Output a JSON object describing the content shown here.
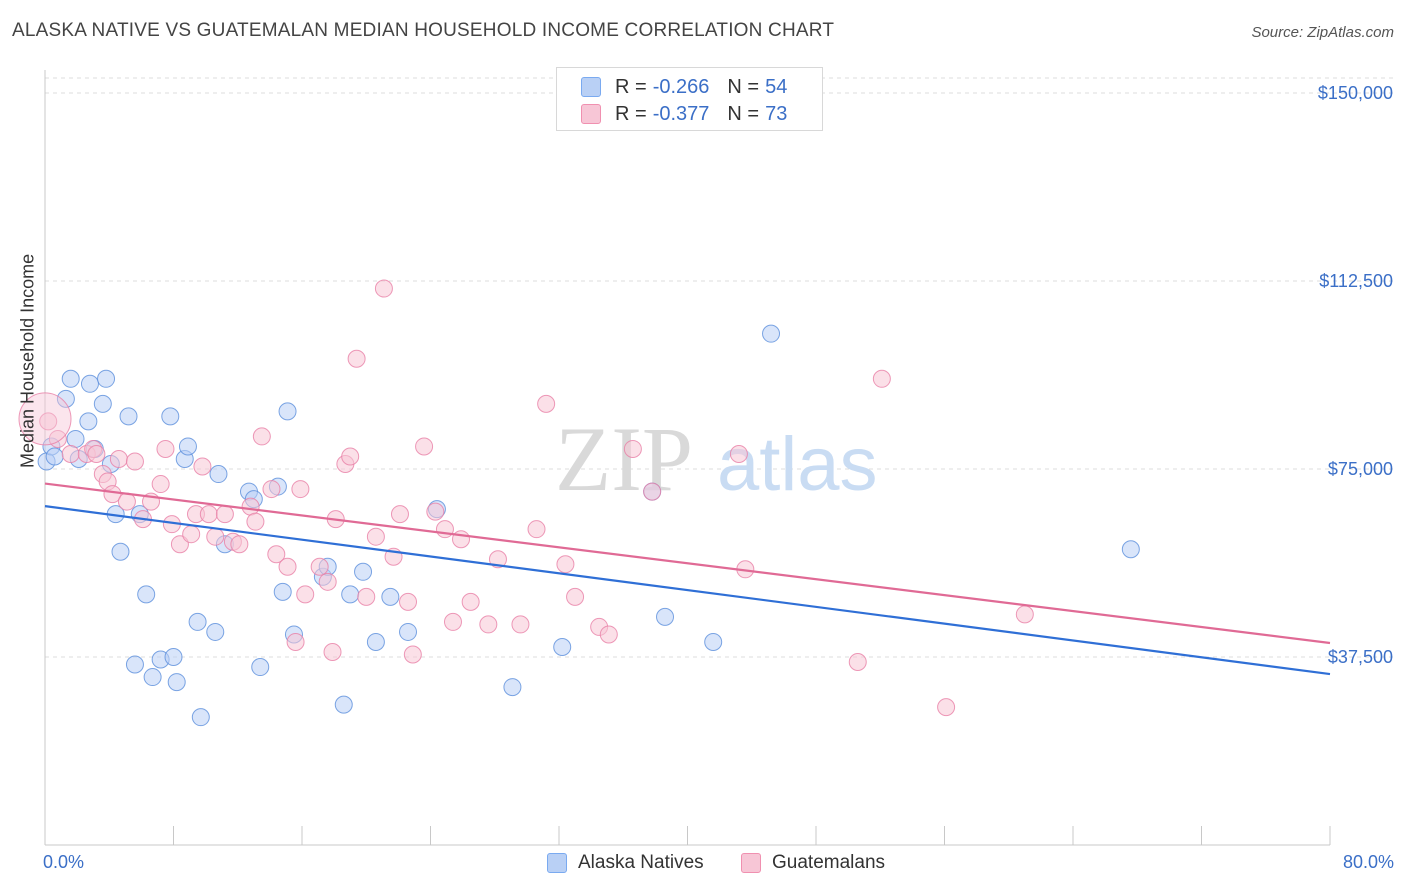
{
  "title": "ALASKA NATIVE VS GUATEMALAN MEDIAN HOUSEHOLD INCOME CORRELATION CHART",
  "source": "Source: ZipAtlas.com",
  "watermark": {
    "zip": "ZIP",
    "atlas": "atlas"
  },
  "legend_top": [
    {
      "r_label": "R =",
      "r_value": "-0.266",
      "n_label": "N =",
      "n_value": "54",
      "color": "#7aaaf0",
      "fill": "#b9d0f5"
    },
    {
      "r_label": "R =",
      "r_value": "-0.377",
      "n_label": "N =",
      "n_value": "73",
      "color": "#f090b0",
      "fill": "#f7c6d6"
    }
  ],
  "chart_data": {
    "type": "scatter",
    "title": "ALASKA NATIVE VS GUATEMALAN MEDIAN HOUSEHOLD INCOME CORRELATION CHART",
    "xlabel": "",
    "ylabel": "Median Household Income",
    "xlim": [
      0,
      80
    ],
    "ylim": [
      0,
      153000
    ],
    "x_tick_labels": [
      "0.0%",
      "80.0%"
    ],
    "y_ticks": [
      37500,
      75000,
      112500,
      150000
    ],
    "y_tick_labels": [
      "$37,500",
      "$75,000",
      "$112,500",
      "$150,000"
    ],
    "grid": "horizontal dashed",
    "legend_position": "top-center and bottom",
    "series": [
      {
        "name": "Alaska Natives",
        "color": "#5b8fdc",
        "fill": "#b9d0f5",
        "trend": {
          "x": [
            0,
            80
          ],
          "y": [
            67600,
            34100
          ]
        },
        "points": [
          [
            0.1,
            76500
          ],
          [
            0.4,
            79500
          ],
          [
            0.6,
            77500
          ],
          [
            1.3,
            89000
          ],
          [
            1.6,
            93000
          ],
          [
            1.9,
            81000
          ],
          [
            2.1,
            77000
          ],
          [
            2.7,
            84500
          ],
          [
            2.8,
            92000
          ],
          [
            3.1,
            79000
          ],
          [
            3.6,
            88000
          ],
          [
            3.8,
            93000
          ],
          [
            4.1,
            76000
          ],
          [
            4.4,
            66000
          ],
          [
            4.7,
            58500
          ],
          [
            5.2,
            85500
          ],
          [
            5.6,
            36000
          ],
          [
            5.9,
            66000
          ],
          [
            6.3,
            50000
          ],
          [
            6.7,
            33500
          ],
          [
            7.2,
            37000
          ],
          [
            7.8,
            85500
          ],
          [
            8.0,
            37500
          ],
          [
            8.2,
            32500
          ],
          [
            8.7,
            77000
          ],
          [
            8.9,
            79500
          ],
          [
            9.5,
            44500
          ],
          [
            9.7,
            25500
          ],
          [
            10.6,
            42500
          ],
          [
            10.8,
            74000
          ],
          [
            11.2,
            60000
          ],
          [
            12.7,
            70500
          ],
          [
            13.0,
            69000
          ],
          [
            13.4,
            35500
          ],
          [
            14.5,
            71500
          ],
          [
            14.8,
            50500
          ],
          [
            15.1,
            86500
          ],
          [
            15.5,
            42000
          ],
          [
            17.3,
            53500
          ],
          [
            17.6,
            55500
          ],
          [
            18.6,
            28000
          ],
          [
            19.0,
            50000
          ],
          [
            19.8,
            54500
          ],
          [
            20.6,
            40500
          ],
          [
            21.5,
            49500
          ],
          [
            22.6,
            42500
          ],
          [
            24.4,
            67000
          ],
          [
            29.1,
            31500
          ],
          [
            32.2,
            39500
          ],
          [
            37.8,
            70500
          ],
          [
            38.6,
            45500
          ],
          [
            41.6,
            40500
          ],
          [
            45.2,
            102000
          ],
          [
            67.6,
            59000
          ]
        ]
      },
      {
        "name": "Guatemalans",
        "color": "#e87fa6",
        "fill": "#f7c6d6",
        "trend": {
          "x": [
            0,
            80
          ],
          "y": [
            72100,
            40300
          ]
        },
        "points": [
          [
            0.2,
            84500
          ],
          [
            0.8,
            81000
          ],
          [
            1.6,
            78000
          ],
          [
            2.6,
            78000
          ],
          [
            3.0,
            79000
          ],
          [
            3.2,
            78000
          ],
          [
            3.6,
            74000
          ],
          [
            3.9,
            72500
          ],
          [
            4.2,
            70000
          ],
          [
            4.6,
            77000
          ],
          [
            5.1,
            68500
          ],
          [
            5.6,
            76500
          ],
          [
            6.1,
            65000
          ],
          [
            6.6,
            68500
          ],
          [
            7.2,
            72000
          ],
          [
            7.5,
            79000
          ],
          [
            7.9,
            64000
          ],
          [
            8.4,
            60000
          ],
          [
            9.1,
            62000
          ],
          [
            9.4,
            66000
          ],
          [
            9.8,
            75500
          ],
          [
            10.2,
            66000
          ],
          [
            10.6,
            61500
          ],
          [
            11.2,
            66000
          ],
          [
            11.7,
            60500
          ],
          [
            12.1,
            60000
          ],
          [
            12.8,
            67500
          ],
          [
            13.1,
            64500
          ],
          [
            13.5,
            81500
          ],
          [
            14.1,
            71000
          ],
          [
            14.4,
            58000
          ],
          [
            15.1,
            55500
          ],
          [
            15.6,
            40500
          ],
          [
            15.9,
            71000
          ],
          [
            16.2,
            50000
          ],
          [
            17.1,
            55500
          ],
          [
            17.6,
            52500
          ],
          [
            17.9,
            38500
          ],
          [
            18.1,
            65000
          ],
          [
            18.7,
            76000
          ],
          [
            19.0,
            77500
          ],
          [
            19.4,
            97000
          ],
          [
            20.0,
            49500
          ],
          [
            20.6,
            61500
          ],
          [
            21.1,
            111000
          ],
          [
            21.7,
            57500
          ],
          [
            22.1,
            66000
          ],
          [
            22.6,
            48500
          ],
          [
            22.9,
            38000
          ],
          [
            23.6,
            79500
          ],
          [
            24.9,
            63000
          ],
          [
            24.3,
            66500
          ],
          [
            25.4,
            44500
          ],
          [
            25.9,
            61000
          ],
          [
            26.5,
            48500
          ],
          [
            27.6,
            44000
          ],
          [
            28.2,
            57000
          ],
          [
            29.6,
            44000
          ],
          [
            30.6,
            63000
          ],
          [
            31.2,
            88000
          ],
          [
            32.4,
            56000
          ],
          [
            33.0,
            49500
          ],
          [
            34.5,
            43500
          ],
          [
            35.1,
            42000
          ],
          [
            36.6,
            79000
          ],
          [
            37.8,
            70500
          ],
          [
            43.2,
            78000
          ],
          [
            43.6,
            55000
          ],
          [
            50.6,
            36500
          ],
          [
            52.1,
            93000
          ],
          [
            56.1,
            27500
          ],
          [
            61.0,
            46000
          ],
          [
            0.0,
            85000
          ]
        ]
      }
    ]
  },
  "legend_bottom": [
    {
      "label": "Alaska Natives",
      "color": "#7aaaf0",
      "fill": "#b9d0f5"
    },
    {
      "label": "Guatemalans",
      "color": "#f090b0",
      "fill": "#f7c6d6"
    }
  ]
}
